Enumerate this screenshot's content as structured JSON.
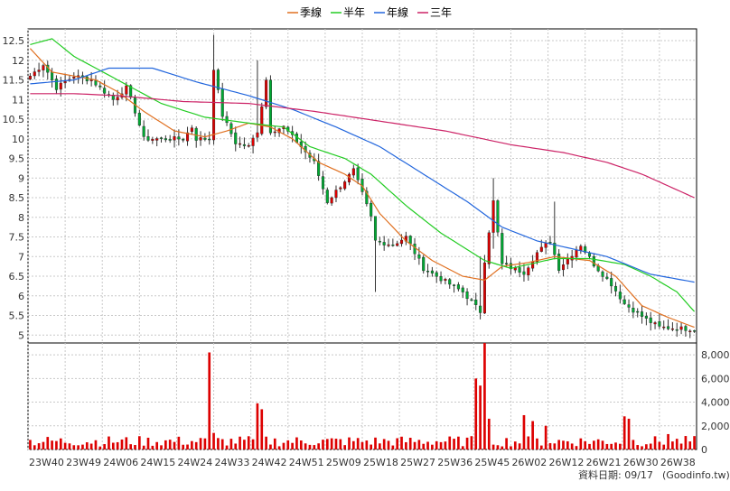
{
  "chart_data": {
    "type": "candlestick",
    "legend": [
      {
        "name": "季線",
        "color": "#e07020"
      },
      {
        "name": "半年",
        "color": "#22cc22"
      },
      {
        "name": "年線",
        "color": "#2266dd"
      },
      {
        "name": "三年",
        "color": "#cc2266"
      }
    ],
    "price_axis": {
      "ylim": [
        4.8,
        12.8
      ],
      "ticks": [
        5,
        5.5,
        6,
        6.5,
        7,
        7.5,
        8,
        8.5,
        9,
        9.5,
        10,
        10.5,
        11,
        11.5,
        12,
        12.5
      ]
    },
    "volume_axis": {
      "ylim": [
        0,
        9000
      ],
      "ticks": [
        0,
        2000,
        4000,
        6000,
        8000
      ],
      "tick_labels": [
        "0",
        "2,000",
        "4,000",
        "6,000",
        "8,000"
      ]
    },
    "x_labels": [
      "23W40",
      "23W49",
      "24W06",
      "24W15",
      "24W24",
      "24W33",
      "24W42",
      "24W51",
      "25W09",
      "25W18",
      "25W27",
      "25W36",
      "25W45",
      "26W02",
      "26W12",
      "26W21",
      "26W30",
      "26W38"
    ],
    "footer": "資料日期: 09/17",
    "source": "(Goodinfo.tw)",
    "candle_color_up": "#dd0000",
    "candle_color_down": "#00aa33",
    "anchors": [
      [
        0,
        11.6
      ],
      [
        3,
        11.9
      ],
      [
        6,
        11.3
      ],
      [
        10,
        11.6
      ],
      [
        14,
        11.5
      ],
      [
        19,
        11.0
      ],
      [
        22,
        11.3
      ],
      [
        24,
        10.7
      ],
      [
        26,
        10.0
      ],
      [
        35,
        10.0
      ],
      [
        37,
        10.3
      ],
      [
        38,
        10.0
      ],
      [
        41,
        10.0
      ],
      [
        42,
        11.8
      ],
      [
        44,
        10.6
      ],
      [
        47,
        9.9
      ],
      [
        50,
        9.8
      ],
      [
        52,
        10.2
      ],
      [
        54,
        11.5
      ],
      [
        55,
        10.2
      ],
      [
        58,
        10.3
      ],
      [
        62,
        9.8
      ],
      [
        65,
        9.4
      ],
      [
        68,
        8.4
      ],
      [
        71,
        8.8
      ],
      [
        74,
        9.2
      ],
      [
        78,
        8.0
      ],
      [
        79,
        7.4
      ],
      [
        83,
        7.3
      ],
      [
        86,
        7.5
      ],
      [
        90,
        6.7
      ],
      [
        93,
        6.5
      ],
      [
        99,
        6.1
      ],
      [
        103,
        5.6
      ],
      [
        104,
        6.9
      ],
      [
        106,
        8.4
      ],
      [
        108,
        6.8
      ],
      [
        113,
        6.6
      ],
      [
        116,
        7.1
      ],
      [
        119,
        7.4
      ],
      [
        121,
        6.7
      ],
      [
        126,
        7.3
      ],
      [
        129,
        6.8
      ],
      [
        133,
        6.3
      ],
      [
        136,
        5.8
      ],
      [
        141,
        5.4
      ],
      [
        144,
        5.2
      ],
      [
        152,
        5.15
      ]
    ],
    "ma_sma": {
      "季線": [
        [
          0,
          12.3
        ],
        [
          5,
          11.7
        ],
        [
          15,
          11.5
        ],
        [
          20,
          11.2
        ],
        [
          26,
          10.7
        ],
        [
          33,
          10.2
        ],
        [
          40,
          10.05
        ],
        [
          45,
          10.2
        ],
        [
          50,
          10.4
        ],
        [
          55,
          10.3
        ],
        [
          60,
          10.0
        ],
        [
          66,
          9.4
        ],
        [
          72,
          9.1
        ],
        [
          76,
          8.8
        ],
        [
          80,
          8.1
        ],
        [
          86,
          7.4
        ],
        [
          92,
          6.9
        ],
        [
          99,
          6.5
        ],
        [
          104,
          6.4
        ],
        [
          108,
          6.75
        ],
        [
          114,
          6.85
        ],
        [
          120,
          7.0
        ],
        [
          128,
          6.9
        ],
        [
          134,
          6.5
        ],
        [
          140,
          5.75
        ],
        [
          146,
          5.45
        ],
        [
          152,
          5.2
        ]
      ],
      "半年": [
        [
          0,
          12.4
        ],
        [
          5,
          12.55
        ],
        [
          10,
          12.1
        ],
        [
          20,
          11.5
        ],
        [
          30,
          10.9
        ],
        [
          40,
          10.55
        ],
        [
          50,
          10.4
        ],
        [
          58,
          10.3
        ],
        [
          64,
          9.8
        ],
        [
          72,
          9.5
        ],
        [
          78,
          9.1
        ],
        [
          86,
          8.3
        ],
        [
          94,
          7.6
        ],
        [
          104,
          6.9
        ],
        [
          110,
          6.7
        ],
        [
          120,
          6.95
        ],
        [
          128,
          6.95
        ],
        [
          136,
          6.8
        ],
        [
          142,
          6.5
        ],
        [
          148,
          6.1
        ],
        [
          152,
          5.6
        ]
      ],
      "年線": [
        [
          0,
          11.4
        ],
        [
          10,
          11.5
        ],
        [
          18,
          11.8
        ],
        [
          28,
          11.8
        ],
        [
          38,
          11.45
        ],
        [
          50,
          11.1
        ],
        [
          60,
          10.75
        ],
        [
          70,
          10.3
        ],
        [
          80,
          9.8
        ],
        [
          90,
          9.1
        ],
        [
          100,
          8.4
        ],
        [
          108,
          7.75
        ],
        [
          116,
          7.4
        ],
        [
          124,
          7.2
        ],
        [
          132,
          7.0
        ],
        [
          142,
          6.55
        ],
        [
          152,
          6.35
        ]
      ],
      "三年": [
        [
          0,
          11.15
        ],
        [
          10,
          11.15
        ],
        [
          20,
          11.1
        ],
        [
          35,
          10.95
        ],
        [
          50,
          10.9
        ],
        [
          65,
          10.7
        ],
        [
          80,
          10.45
        ],
        [
          95,
          10.2
        ],
        [
          110,
          9.85
        ],
        [
          122,
          9.65
        ],
        [
          132,
          9.4
        ],
        [
          140,
          9.1
        ],
        [
          146,
          8.8
        ],
        [
          152,
          8.5
        ]
      ]
    }
  }
}
